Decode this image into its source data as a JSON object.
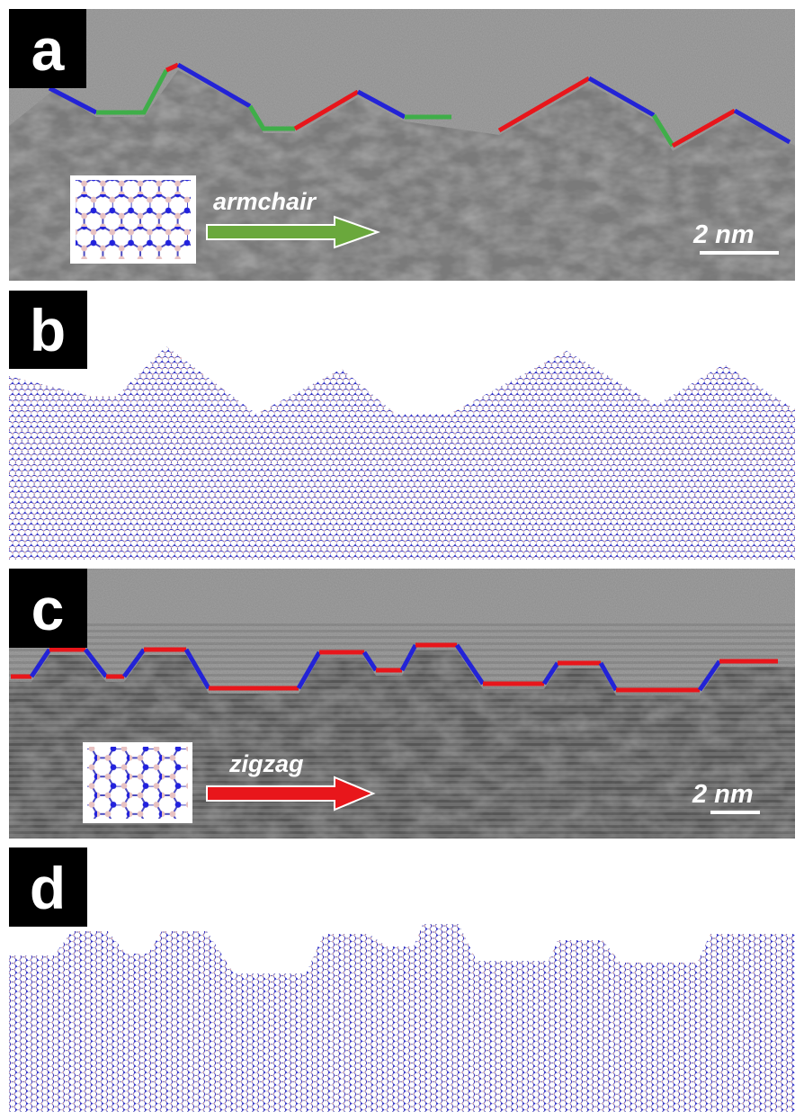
{
  "panels": [
    {
      "label": "a",
      "direction": "armchair",
      "scale_bar": "2 nm"
    },
    {
      "label": "b"
    },
    {
      "label": "c",
      "direction": "zigzag",
      "scale_bar": "2 nm"
    },
    {
      "label": "d"
    }
  ]
}
